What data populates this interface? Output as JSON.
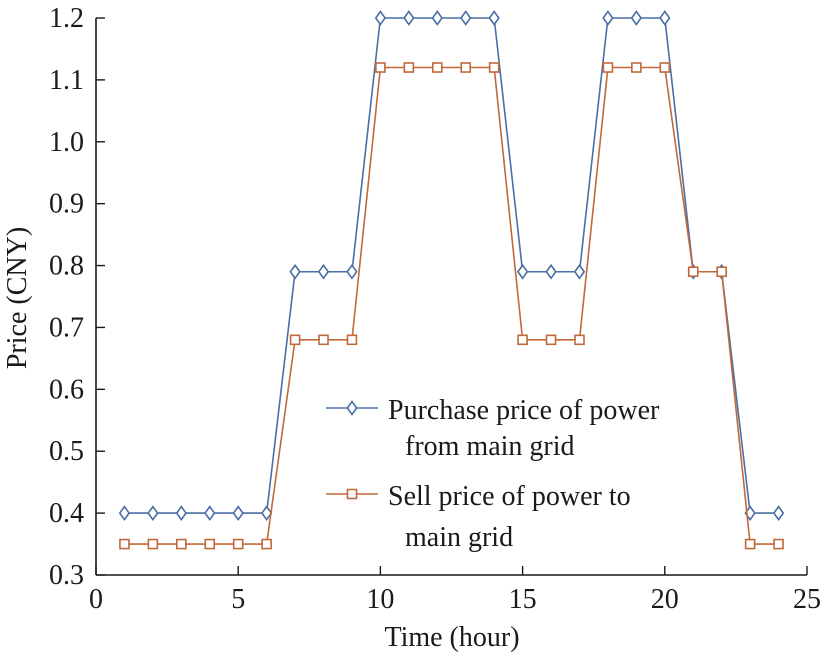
{
  "chart_data": {
    "type": "line",
    "xlabel": "Time (hour)",
    "ylabel": "Price (CNY)",
    "xlim": [
      0,
      25
    ],
    "ylim": [
      0.3,
      1.2
    ],
    "xticks": [
      0,
      5,
      10,
      15,
      20,
      25
    ],
    "yticks": [
      0.3,
      0.4,
      0.5,
      0.6,
      0.7,
      0.8,
      0.9,
      1.0,
      1.1,
      1.2
    ],
    "xtick_labels": [
      "0",
      "5",
      "10",
      "15",
      "20",
      "25"
    ],
    "ytick_labels": [
      "0.3",
      "0.4",
      "0.5",
      "0.6",
      "0.7",
      "0.8",
      "0.9",
      "1.0",
      "1.1",
      "1.2"
    ],
    "grid": false,
    "legend_position": "lower-center",
    "x": [
      1,
      2,
      3,
      4,
      5,
      6,
      7,
      8,
      9,
      10,
      11,
      12,
      13,
      14,
      15,
      16,
      17,
      18,
      19,
      20,
      21,
      22,
      23,
      24
    ],
    "series": [
      {
        "name_lines": [
          "Purchase price of power",
          "from main grid"
        ],
        "marker": "diamond",
        "color": "#4a6fa5",
        "values": [
          0.4,
          0.4,
          0.4,
          0.4,
          0.4,
          0.4,
          0.79,
          0.79,
          0.79,
          1.2,
          1.2,
          1.2,
          1.2,
          1.2,
          0.79,
          0.79,
          0.79,
          1.2,
          1.2,
          1.2,
          0.79,
          0.79,
          0.4,
          0.4
        ]
      },
      {
        "name_lines": [
          "Sell price of power to",
          "main grid"
        ],
        "marker": "square",
        "color": "#c0693a",
        "values": [
          0.35,
          0.35,
          0.35,
          0.35,
          0.35,
          0.35,
          0.68,
          0.68,
          0.68,
          1.12,
          1.12,
          1.12,
          1.12,
          1.12,
          0.68,
          0.68,
          0.68,
          1.12,
          1.12,
          1.12,
          0.79,
          0.79,
          0.35,
          0.35
        ]
      }
    ]
  }
}
